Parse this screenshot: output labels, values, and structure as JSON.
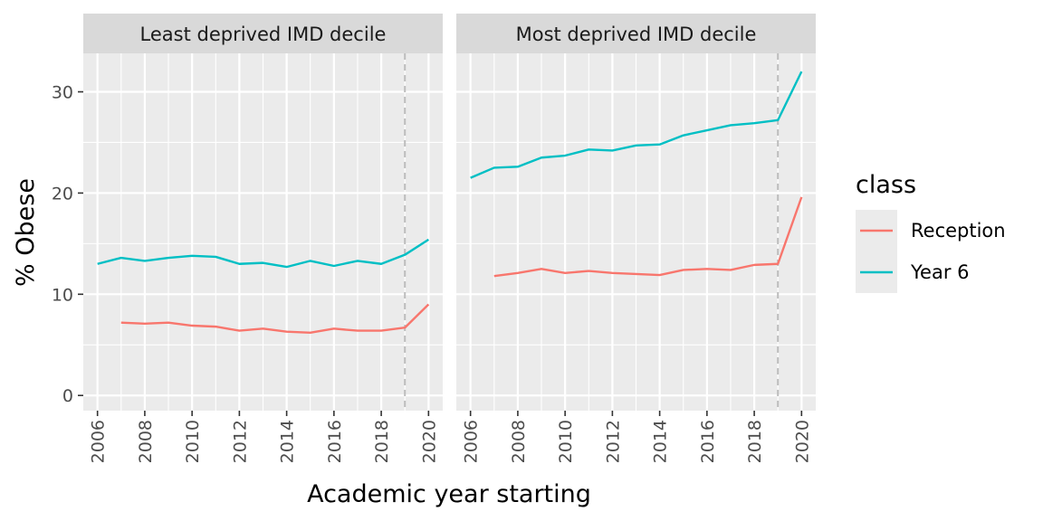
{
  "chart_data": {
    "type": "line",
    "xlabel": "Academic year starting",
    "ylabel": "% Obese",
    "xlim": [
      2005.4,
      2020.6
    ],
    "ylim": [
      -1.5,
      33.8
    ],
    "x_ticks": [
      2006,
      2008,
      2010,
      2012,
      2014,
      2016,
      2018,
      2020
    ],
    "y_ticks": [
      0,
      10,
      20,
      30
    ],
    "grid": true,
    "legend_position": "right",
    "legend_title": "class",
    "reference_line": {
      "x": 2019,
      "style": "dashed",
      "color": "#bdbdbd"
    },
    "series_styles": [
      {
        "name": "Reception",
        "color": "#F8766D"
      },
      {
        "name": "Year 6",
        "color": "#00BFC4"
      }
    ],
    "panels": [
      {
        "title": "Least deprived IMD decile",
        "series": [
          {
            "name": "Reception",
            "x": [
              2007,
              2008,
              2009,
              2010,
              2011,
              2012,
              2013,
              2014,
              2015,
              2016,
              2017,
              2018,
              2019,
              2020
            ],
            "values": [
              7.2,
              7.1,
              7.2,
              6.9,
              6.8,
              6.4,
              6.6,
              6.3,
              6.2,
              6.6,
              6.4,
              6.4,
              6.7,
              9.0
            ]
          },
          {
            "name": "Year 6",
            "x": [
              2006,
              2007,
              2008,
              2009,
              2010,
              2011,
              2012,
              2013,
              2014,
              2015,
              2016,
              2017,
              2018,
              2019,
              2020
            ],
            "values": [
              13.0,
              13.6,
              13.3,
              13.6,
              13.8,
              13.7,
              13.0,
              13.1,
              12.7,
              13.3,
              12.8,
              13.3,
              13.0,
              13.9,
              15.4
            ]
          }
        ]
      },
      {
        "title": "Most deprived IMD decile",
        "series": [
          {
            "name": "Reception",
            "x": [
              2007,
              2008,
              2009,
              2010,
              2011,
              2012,
              2013,
              2014,
              2015,
              2016,
              2017,
              2018,
              2019,
              2020
            ],
            "values": [
              11.8,
              12.1,
              12.5,
              12.1,
              12.3,
              12.1,
              12.0,
              11.9,
              12.4,
              12.5,
              12.4,
              12.9,
              13.0,
              19.6
            ]
          },
          {
            "name": "Year 6",
            "x": [
              2006,
              2007,
              2008,
              2009,
              2010,
              2011,
              2012,
              2013,
              2014,
              2015,
              2016,
              2017,
              2018,
              2019,
              2020
            ],
            "values": [
              21.5,
              22.5,
              22.6,
              23.5,
              23.7,
              24.3,
              24.2,
              24.7,
              24.8,
              25.7,
              26.2,
              26.7,
              26.9,
              27.2,
              32.0
            ]
          }
        ]
      }
    ]
  }
}
